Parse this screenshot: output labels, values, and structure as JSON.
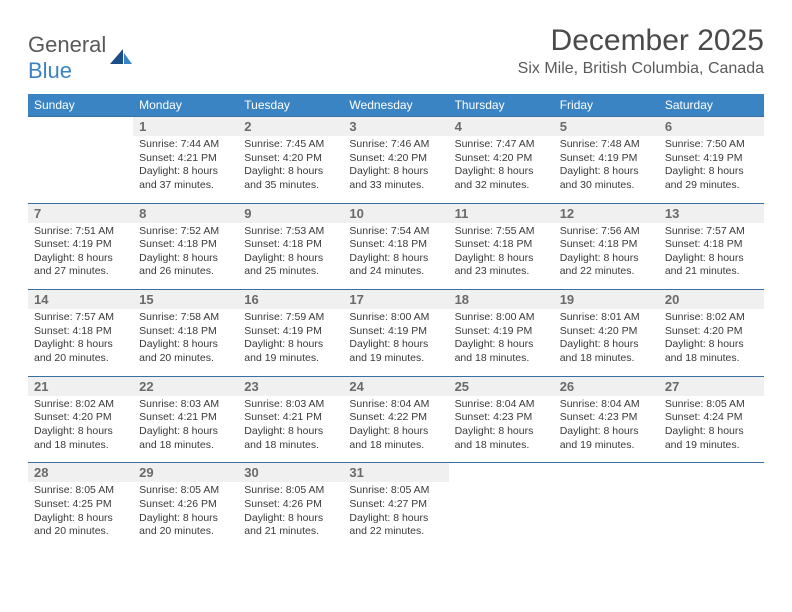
{
  "logo": {
    "word1": "General",
    "word2": "Blue"
  },
  "title": "December 2025",
  "location": "Six Mile, British Columbia, Canada",
  "colors": {
    "header_bg": "#3a84c4",
    "header_text": "#ffffff",
    "daynum_bg": "#f0f0f0",
    "daynum_text": "#6a6a6a",
    "body_text": "#3a3a3a",
    "rule": "#3a6fa0",
    "logo_gray": "#595959",
    "logo_blue": "#3a84c4",
    "page_bg": "#ffffff"
  },
  "fonts": {
    "title_pt": 30,
    "location_pt": 16,
    "dayhead_pt": 12,
    "daynum_pt": 13,
    "body_pt": 10.5
  },
  "day_headers": [
    "Sunday",
    "Monday",
    "Tuesday",
    "Wednesday",
    "Thursday",
    "Friday",
    "Saturday"
  ],
  "weeks": [
    [
      null,
      {
        "n": "1",
        "sunrise": "7:44 AM",
        "sunset": "4:21 PM",
        "daylight": "8 hours and 37 minutes."
      },
      {
        "n": "2",
        "sunrise": "7:45 AM",
        "sunset": "4:20 PM",
        "daylight": "8 hours and 35 minutes."
      },
      {
        "n": "3",
        "sunrise": "7:46 AM",
        "sunset": "4:20 PM",
        "daylight": "8 hours and 33 minutes."
      },
      {
        "n": "4",
        "sunrise": "7:47 AM",
        "sunset": "4:20 PM",
        "daylight": "8 hours and 32 minutes."
      },
      {
        "n": "5",
        "sunrise": "7:48 AM",
        "sunset": "4:19 PM",
        "daylight": "8 hours and 30 minutes."
      },
      {
        "n": "6",
        "sunrise": "7:50 AM",
        "sunset": "4:19 PM",
        "daylight": "8 hours and 29 minutes."
      }
    ],
    [
      {
        "n": "7",
        "sunrise": "7:51 AM",
        "sunset": "4:19 PM",
        "daylight": "8 hours and 27 minutes."
      },
      {
        "n": "8",
        "sunrise": "7:52 AM",
        "sunset": "4:18 PM",
        "daylight": "8 hours and 26 minutes."
      },
      {
        "n": "9",
        "sunrise": "7:53 AM",
        "sunset": "4:18 PM",
        "daylight": "8 hours and 25 minutes."
      },
      {
        "n": "10",
        "sunrise": "7:54 AM",
        "sunset": "4:18 PM",
        "daylight": "8 hours and 24 minutes."
      },
      {
        "n": "11",
        "sunrise": "7:55 AM",
        "sunset": "4:18 PM",
        "daylight": "8 hours and 23 minutes."
      },
      {
        "n": "12",
        "sunrise": "7:56 AM",
        "sunset": "4:18 PM",
        "daylight": "8 hours and 22 minutes."
      },
      {
        "n": "13",
        "sunrise": "7:57 AM",
        "sunset": "4:18 PM",
        "daylight": "8 hours and 21 minutes."
      }
    ],
    [
      {
        "n": "14",
        "sunrise": "7:57 AM",
        "sunset": "4:18 PM",
        "daylight": "8 hours and 20 minutes."
      },
      {
        "n": "15",
        "sunrise": "7:58 AM",
        "sunset": "4:18 PM",
        "daylight": "8 hours and 20 minutes."
      },
      {
        "n": "16",
        "sunrise": "7:59 AM",
        "sunset": "4:19 PM",
        "daylight": "8 hours and 19 minutes."
      },
      {
        "n": "17",
        "sunrise": "8:00 AM",
        "sunset": "4:19 PM",
        "daylight": "8 hours and 19 minutes."
      },
      {
        "n": "18",
        "sunrise": "8:00 AM",
        "sunset": "4:19 PM",
        "daylight": "8 hours and 18 minutes."
      },
      {
        "n": "19",
        "sunrise": "8:01 AM",
        "sunset": "4:20 PM",
        "daylight": "8 hours and 18 minutes."
      },
      {
        "n": "20",
        "sunrise": "8:02 AM",
        "sunset": "4:20 PM",
        "daylight": "8 hours and 18 minutes."
      }
    ],
    [
      {
        "n": "21",
        "sunrise": "8:02 AM",
        "sunset": "4:20 PM",
        "daylight": "8 hours and 18 minutes."
      },
      {
        "n": "22",
        "sunrise": "8:03 AM",
        "sunset": "4:21 PM",
        "daylight": "8 hours and 18 minutes."
      },
      {
        "n": "23",
        "sunrise": "8:03 AM",
        "sunset": "4:21 PM",
        "daylight": "8 hours and 18 minutes."
      },
      {
        "n": "24",
        "sunrise": "8:04 AM",
        "sunset": "4:22 PM",
        "daylight": "8 hours and 18 minutes."
      },
      {
        "n": "25",
        "sunrise": "8:04 AM",
        "sunset": "4:23 PM",
        "daylight": "8 hours and 18 minutes."
      },
      {
        "n": "26",
        "sunrise": "8:04 AM",
        "sunset": "4:23 PM",
        "daylight": "8 hours and 19 minutes."
      },
      {
        "n": "27",
        "sunrise": "8:05 AM",
        "sunset": "4:24 PM",
        "daylight": "8 hours and 19 minutes."
      }
    ],
    [
      {
        "n": "28",
        "sunrise": "8:05 AM",
        "sunset": "4:25 PM",
        "daylight": "8 hours and 20 minutes."
      },
      {
        "n": "29",
        "sunrise": "8:05 AM",
        "sunset": "4:26 PM",
        "daylight": "8 hours and 20 minutes."
      },
      {
        "n": "30",
        "sunrise": "8:05 AM",
        "sunset": "4:26 PM",
        "daylight": "8 hours and 21 minutes."
      },
      {
        "n": "31",
        "sunrise": "8:05 AM",
        "sunset": "4:27 PM",
        "daylight": "8 hours and 22 minutes."
      },
      null,
      null,
      null
    ]
  ],
  "labels": {
    "sunrise": "Sunrise: ",
    "sunset": "Sunset: ",
    "daylight": "Daylight: "
  }
}
